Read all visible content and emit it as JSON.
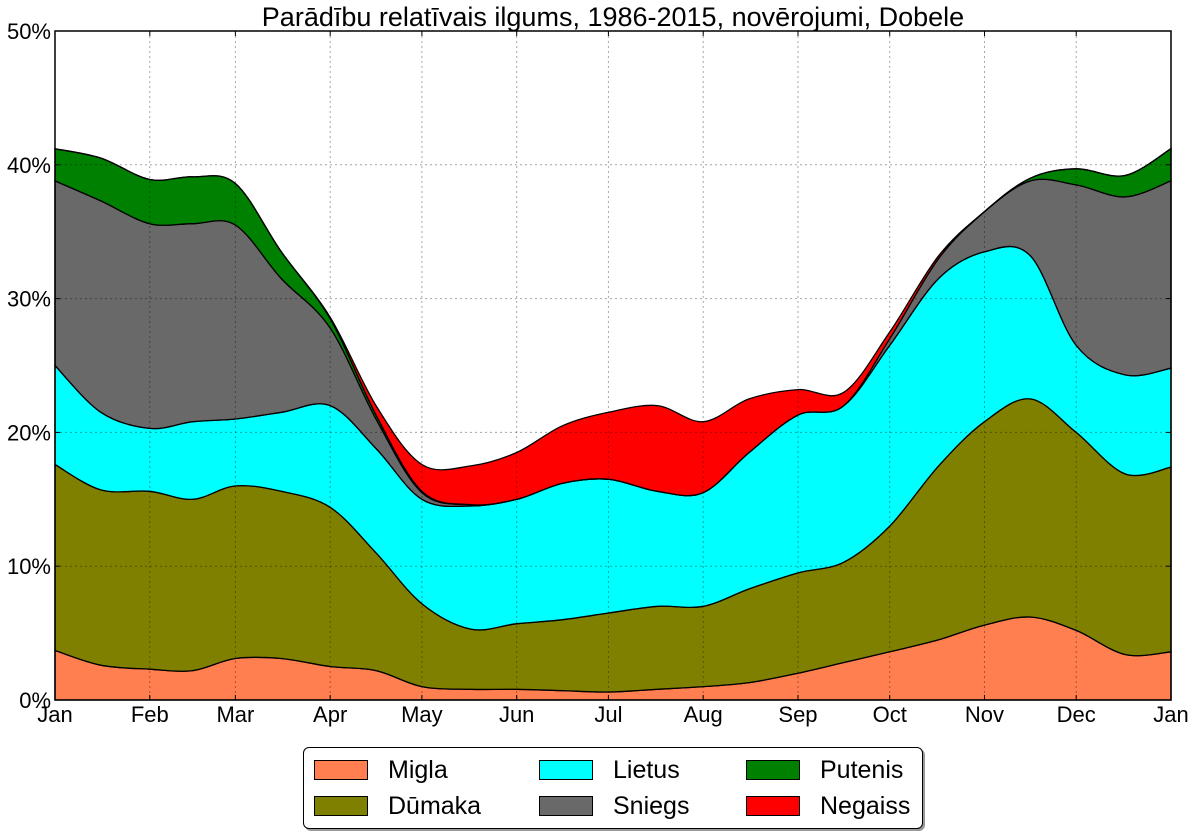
{
  "chart_data": {
    "type": "area",
    "stacked": true,
    "title": "Parādību relatīvais ilgums, 1986-2015, novērojumi, Dobele",
    "xlabel": "",
    "ylabel": "",
    "ylim": [
      0,
      50
    ],
    "yticks": [
      0,
      10,
      20,
      30,
      40,
      50
    ],
    "ytick_labels": [
      "0%",
      "10%",
      "20%",
      "30%",
      "40%",
      "50%"
    ],
    "xlim": [
      0,
      365
    ],
    "xticks": [
      0,
      31,
      59,
      90,
      120,
      151,
      181,
      212,
      243,
      273,
      304,
      334,
      365
    ],
    "xtick_labels": [
      "Jan",
      "Feb",
      "Mar",
      "Apr",
      "May",
      "Jun",
      "Jul",
      "Aug",
      "Sep",
      "Oct",
      "Nov",
      "Dec",
      "Jan"
    ],
    "grid": true,
    "legend_position": "bottom-center",
    "x": [
      0,
      15,
      31,
      45,
      59,
      74,
      90,
      105,
      120,
      136,
      151,
      166,
      181,
      197,
      212,
      227,
      243,
      258,
      273,
      289,
      304,
      319,
      334,
      350,
      365
    ],
    "series": [
      {
        "name": "Migla",
        "color": "#ff7f50",
        "values": [
          3.7,
          2.6,
          2.3,
          2.2,
          3.1,
          3.1,
          2.5,
          2.2,
          1.0,
          0.8,
          0.8,
          0.7,
          0.6,
          0.8,
          1.0,
          1.3,
          2.0,
          2.8,
          3.6,
          4.5,
          5.6,
          6.2,
          5.2,
          3.4,
          3.6
        ]
      },
      {
        "name": "Dūmaka",
        "color": "#808000",
        "values": [
          13.9,
          13.1,
          13.3,
          12.8,
          12.9,
          12.5,
          11.9,
          8.8,
          6.2,
          4.5,
          4.9,
          5.3,
          5.9,
          6.2,
          6.0,
          7.0,
          7.5,
          7.5,
          9.4,
          13.0,
          15.2,
          16.3,
          14.8,
          13.5,
          13.8
        ]
      },
      {
        "name": "Lietus",
        "color": "#00ffff",
        "values": [
          7.4,
          5.8,
          4.7,
          5.8,
          5.0,
          5.9,
          7.6,
          7.8,
          7.8,
          9.2,
          9.3,
          10.2,
          10.0,
          8.6,
          8.5,
          10.2,
          11.8,
          11.7,
          13.5,
          14.0,
          12.7,
          10.7,
          6.5,
          7.4,
          7.4
        ]
      },
      {
        "name": "Sniegs",
        "color": "#696969",
        "values": [
          13.8,
          15.8,
          15.3,
          14.8,
          14.5,
          10.0,
          5.8,
          2.2,
          0.5,
          0.1,
          0,
          0,
          0,
          0,
          0,
          0,
          0,
          0,
          0.5,
          1.5,
          3.0,
          5.6,
          12.0,
          13.3,
          14.0
        ]
      },
      {
        "name": "Putenis",
        "color": "#008000",
        "values": [
          2.4,
          3.2,
          3.3,
          3.5,
          3.1,
          2.0,
          0.7,
          0.3,
          0.1,
          0,
          0,
          0,
          0,
          0,
          0,
          0,
          0,
          0,
          0,
          0,
          0,
          0.2,
          1.2,
          1.6,
          2.4
        ]
      },
      {
        "name": "Negaiss",
        "color": "#ff0000",
        "values": [
          0,
          0,
          0,
          0,
          0,
          0,
          0.1,
          0.7,
          2.0,
          2.9,
          3.5,
          4.3,
          5.0,
          6.4,
          5.3,
          4.0,
          1.9,
          1.0,
          0.5,
          0.2,
          0,
          0,
          0,
          0,
          0
        ]
      }
    ]
  },
  "legend": {
    "items": [
      {
        "label": "Migla",
        "color": "#ff7f50"
      },
      {
        "label": "Dūmaka",
        "color": "#808000"
      },
      {
        "label": "Lietus",
        "color": "#00ffff"
      },
      {
        "label": "Sniegs",
        "color": "#696969"
      },
      {
        "label": "Putenis",
        "color": "#008000"
      },
      {
        "label": "Negaiss",
        "color": "#ff0000"
      }
    ]
  }
}
